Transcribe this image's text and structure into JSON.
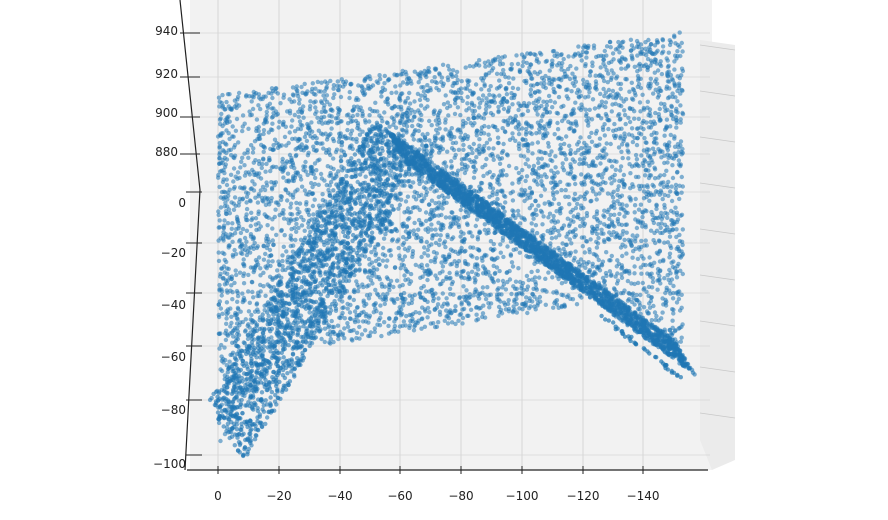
{
  "chart_data": {
    "type": "scatter",
    "projection": "3d",
    "marker_color": "#1f77b4",
    "pane_color": "#f2f2f2",
    "grid": true,
    "x_ticks": [
      "0",
      "−20",
      "−40",
      "−60",
      "−80",
      "−100",
      "−120",
      "−140"
    ],
    "z_ticks": [
      "940",
      "920",
      "900",
      "880"
    ],
    "y_ticks": [
      "0",
      "−20",
      "−40",
      "−60",
      "−80",
      "−100"
    ]
  }
}
